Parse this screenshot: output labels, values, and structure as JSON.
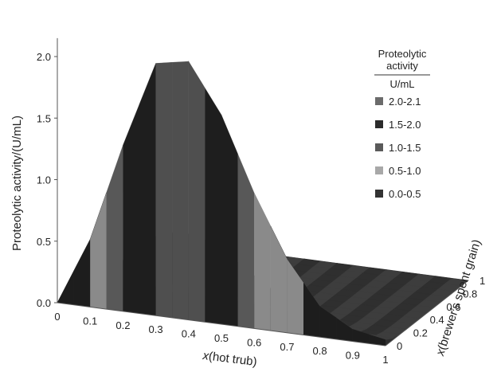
{
  "chart_data": {
    "type": "surface",
    "zlabel": "Proteolytic activity/(U/mL)",
    "xlabel_italic": "x",
    "xlabel_rest": "(hot trub)",
    "ylabel_italic": "x",
    "ylabel_rest": "(brewer's spent grain)",
    "z_ticks": [
      "0.0",
      "0.5",
      "1.0",
      "1.5",
      "2.0"
    ],
    "z_tick_values": [
      0.0,
      0.5,
      1.0,
      1.5,
      2.0
    ],
    "x_ticks": [
      "0",
      "0.1",
      "0.2",
      "0.3",
      "0.4",
      "0.5",
      "0.6",
      "0.7",
      "0.8",
      "0.9",
      "1"
    ],
    "x_tick_values": [
      0,
      0.1,
      0.2,
      0.3,
      0.4,
      0.5,
      0.6,
      0.7,
      0.8,
      0.9,
      1
    ],
    "y_ticks": [
      "0",
      "0.2",
      "0.4",
      "0.6",
      "0.8",
      "1"
    ],
    "y_tick_values": [
      0,
      0.2,
      0.4,
      0.6,
      0.8,
      1
    ],
    "zlim": [
      0,
      2.1
    ],
    "legend": {
      "title_line1": "Proteolytic",
      "title_line2": "activity",
      "unit": "U/mL",
      "placement": "top-right",
      "entries": [
        {
          "label": "2.0-2.1",
          "color": "#6b6b6b"
        },
        {
          "label": "1.5-2.0",
          "color": "#2b2b2b"
        },
        {
          "label": "1.0-1.5",
          "color": "#5a5a5a"
        },
        {
          "label": "0.5-1.0",
          "color": "#a8a8a8"
        },
        {
          "label": "0.0-0.5",
          "color": "#333333"
        }
      ]
    },
    "band_colors": [
      "#2f2f2f",
      "#9c9c9c",
      "#6a6a6a",
      "#303030",
      "#616161"
    ],
    "surface_model": {
      "description": "activity is near zero for brewer's spent grain fraction > 0 except small spikes; peak about 2.1 at hot trub about 0.25 along the front edge",
      "front_edge_x": [
        0,
        0.1,
        0.2,
        0.3,
        0.4,
        0.5,
        0.6,
        0.7,
        0.8,
        0.9,
        1
      ],
      "front_edge_z": [
        0.0,
        0.55,
        1.35,
        2.05,
        2.1,
        1.7,
        1.1,
        0.6,
        0.25,
        0.1,
        0.05
      ]
    }
  }
}
